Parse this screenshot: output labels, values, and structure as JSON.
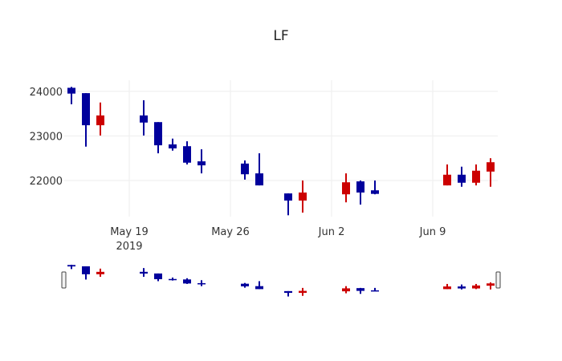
{
  "chart_data": {
    "type": "candlestick",
    "title": "LF",
    "xlabel": "",
    "ylabel": "",
    "ylim": [
      21190,
      24250
    ],
    "yticks": [
      22000,
      23000,
      24000
    ],
    "ytick_labels": [
      "22000",
      "23000",
      "24000"
    ],
    "xticks": [
      {
        "date": "2019-05-19",
        "label": "May 19",
        "sublabel": "2019"
      },
      {
        "date": "2019-05-26",
        "label": "May 26",
        "sublabel": ""
      },
      {
        "date": "2019-06-02",
        "label": "Jun 2",
        "sublabel": ""
      },
      {
        "date": "2019-06-09",
        "label": "Jun 9",
        "sublabel": ""
      }
    ],
    "xrange": [
      "2019-05-14.5",
      "2019-06-13.5"
    ],
    "grid": true,
    "rangeslider": true,
    "colors": {
      "increasing": "#cc0000",
      "decreasing": "#00009c"
    },
    "x": [
      "2019-05-15",
      "2019-05-16",
      "2019-05-17",
      "2019-05-20",
      "2019-05-21",
      "2019-05-22",
      "2019-05-23",
      "2019-05-24",
      "2019-05-27",
      "2019-05-28",
      "2019-05-30",
      "2019-05-31",
      "2019-06-03",
      "2019-06-04",
      "2019-06-05",
      "2019-06-10",
      "2019-06-11",
      "2019-06-12",
      "2019-06-13"
    ],
    "open": [
      24080,
      23960,
      23240,
      23460,
      23310,
      22810,
      22770,
      22430,
      22380,
      22160,
      21710,
      21550,
      21690,
      21980,
      21780,
      21890,
      22130,
      21950,
      22200
    ],
    "high": [
      24100,
      23960,
      23750,
      23800,
      23310,
      22940,
      22880,
      22700,
      22450,
      22610,
      21710,
      22000,
      22160,
      22000,
      22000,
      22360,
      22310,
      22360,
      22500
    ],
    "low": [
      23710,
      22760,
      23010,
      23010,
      22610,
      22670,
      22360,
      22160,
      22020,
      21890,
      21220,
      21280,
      21510,
      21460,
      21690,
      21890,
      21860,
      21890,
      21860
    ],
    "close": [
      23950,
      23240,
      23460,
      23300,
      22790,
      22720,
      22400,
      22340,
      22140,
      21890,
      21550,
      21730,
      21960,
      21730,
      21700,
      22130,
      21950,
      22220,
      22410
    ]
  }
}
